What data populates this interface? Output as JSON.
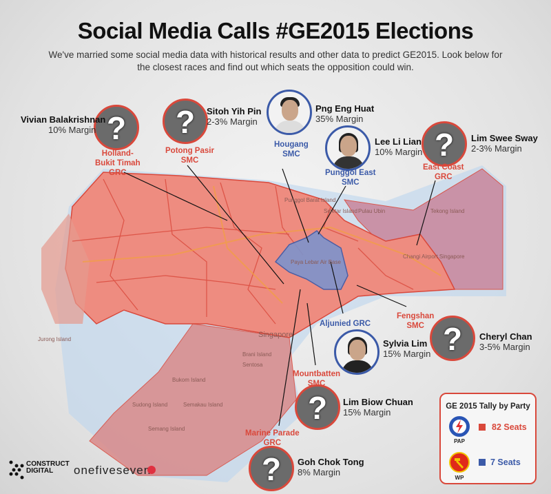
{
  "title": "Social Media Calls #GE2015 Elections",
  "subtitle": "We've married some social media data with historical results and other data to predict GE2015. Look below for the closest races and find out which seats the opposition could win.",
  "colors": {
    "pap": "#d9483b",
    "wp": "#3b5aa8"
  },
  "candidates": [
    {
      "name": "Vivian Balakrishnan",
      "margin": "10% Margin",
      "seat": "Holland-\nBukit Timah\nGRC",
      "party": "PAP",
      "photo": "question-mark"
    },
    {
      "name": "Sitoh Yih Pin",
      "margin": "2-3% Margin",
      "seat": "Potong Pasir\nSMC",
      "party": "PAP",
      "photo": "question-mark"
    },
    {
      "name": "Png Eng Huat",
      "margin": "35% Margin",
      "seat": "Hougang\nSMC",
      "party": "WP",
      "photo": "portrait"
    },
    {
      "name": "Lee Li Lian",
      "margin": "10% Margin",
      "seat": "Punggol East\nSMC",
      "party": "WP",
      "photo": "portrait"
    },
    {
      "name": "Lim Swee Sway",
      "margin": "2-3% Margin",
      "seat": "East Coast\nGRC",
      "party": "PAP",
      "photo": "question-mark"
    },
    {
      "name": "Sylvia Lim",
      "margin": "15% Margin",
      "seat": "Aljunied GRC",
      "party": "WP",
      "photo": "portrait"
    },
    {
      "name": "Cheryl Chan",
      "margin": "3-5% Margin",
      "seat": "Fengshan\nSMC",
      "party": "PAP",
      "photo": "question-mark"
    },
    {
      "name": "Lim Biow Chuan",
      "margin": "15% Margin",
      "seat": "Mountbatten\nSMC",
      "party": "PAP",
      "photo": "question-mark"
    },
    {
      "name": "Goh Chok Tong",
      "margin": "8% Margin",
      "seat": "Marine Parade\nGRC",
      "party": "PAP",
      "photo": "question-mark"
    }
  ],
  "map_labels": [
    "Singapore",
    "Jurong Island",
    "Brani Island",
    "Sentosa",
    "Bukom Island",
    "Sudong Island",
    "Semakau Island",
    "Semang Island",
    "Pulau Ubin",
    "Tekong Island",
    "Changi Airport Singapore",
    "Paya Lebar Air Base",
    "Punggol Barat Island",
    "Seletar Island"
  ],
  "tally": {
    "title": "GE 2015 Tally by Party",
    "parties": [
      {
        "abbr": "PAP",
        "seats": "82 Seats"
      },
      {
        "abbr": "WP",
        "seats": "7 Seats"
      }
    ]
  },
  "footer": {
    "logo1": "CONSTRUCT DIGITAL",
    "logo2": "onefiveseven"
  }
}
